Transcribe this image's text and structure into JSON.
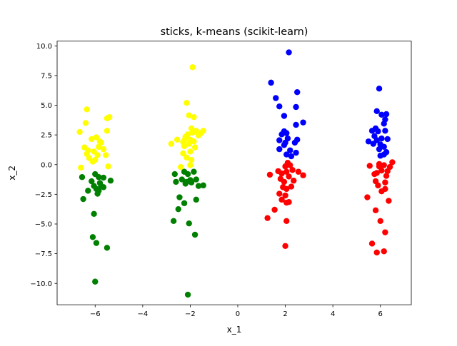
{
  "chart_data": {
    "type": "scatter",
    "title": "sticks, k-means (scikit-learn)",
    "xlabel": "x_1",
    "ylabel": "x_2",
    "xlim": [
      -7.6,
      7.3
    ],
    "ylim": [
      -11.8,
      10.4
    ],
    "xticks": [
      -6,
      -4,
      -2,
      0,
      2,
      4,
      6
    ],
    "xtick_labels": [
      "−6",
      "−4",
      "−2",
      "0",
      "2",
      "4",
      "6"
    ],
    "yticks": [
      -10.0,
      -7.5,
      -5.0,
      -2.5,
      0.0,
      2.5,
      5.0,
      7.5,
      10.0
    ],
    "ytick_labels": [
      "−10.0",
      "−7.5",
      "−5.0",
      "−2.5",
      "0.0",
      "2.5",
      "5.0",
      "7.5",
      "10.0"
    ],
    "grid": false,
    "legend": false,
    "series": [
      {
        "color": "#ffff00",
        "points": [
          [
            -6.65,
            2.75
          ],
          [
            -6.35,
            4.65
          ],
          [
            -6.4,
            3.5
          ],
          [
            -6.45,
            1.45
          ],
          [
            -6.3,
            1.2
          ],
          [
            -6.05,
            1.1
          ],
          [
            -6.15,
            2.15
          ],
          [
            -5.95,
            2.3
          ],
          [
            -5.75,
            1.85
          ],
          [
            -5.65,
            1.3
          ],
          [
            -5.55,
            0.8
          ],
          [
            -5.5,
            3.9
          ],
          [
            -5.4,
            4.0
          ],
          [
            -5.5,
            2.85
          ],
          [
            -6.25,
            0.55
          ],
          [
            -6.1,
            0.25
          ],
          [
            -5.9,
            0.8
          ],
          [
            -5.85,
            1.5
          ],
          [
            -6.6,
            -0.25
          ],
          [
            -5.45,
            -0.15
          ],
          [
            -5.8,
            1.95
          ],
          [
            -6.0,
            0.4
          ],
          [
            -6.35,
            0.9
          ],
          [
            -2.8,
            1.75
          ],
          [
            -2.55,
            2.1
          ],
          [
            -2.3,
            1.9
          ],
          [
            -2.2,
            2.35
          ],
          [
            -2.1,
            2.55
          ],
          [
            -2.0,
            2.1
          ],
          [
            -1.9,
            2.7
          ],
          [
            -1.75,
            2.85
          ],
          [
            -1.65,
            2.45
          ],
          [
            -1.45,
            2.85
          ],
          [
            -2.15,
            5.2
          ],
          [
            -2.05,
            4.15
          ],
          [
            -1.85,
            4.0
          ],
          [
            -1.95,
            3.05
          ],
          [
            -1.9,
            8.2
          ],
          [
            -2.25,
            1.55
          ],
          [
            -2.0,
            1.1
          ],
          [
            -1.8,
            1.45
          ],
          [
            -2.15,
            0.6
          ],
          [
            -1.95,
            0.4
          ],
          [
            -2.4,
            -0.2
          ],
          [
            -2.0,
            -0.05
          ],
          [
            -2.3,
            0.95
          ],
          [
            -1.85,
            1.95
          ],
          [
            -2.05,
            1.75
          ],
          [
            -2.25,
            2.05
          ],
          [
            -1.55,
            2.65
          ]
        ]
      },
      {
        "color": "#008000",
        "points": [
          [
            -6.55,
            -1.05
          ],
          [
            -6.3,
            -2.2
          ],
          [
            -6.5,
            -2.9
          ],
          [
            -6.15,
            -1.4
          ],
          [
            -6.05,
            -1.8
          ],
          [
            -6.0,
            -0.8
          ],
          [
            -5.95,
            -2.05
          ],
          [
            -5.9,
            -2.45
          ],
          [
            -5.85,
            -1.05
          ],
          [
            -5.8,
            -1.55
          ],
          [
            -5.75,
            -1.8
          ],
          [
            -5.35,
            -1.35
          ],
          [
            -5.5,
            -7.0
          ],
          [
            -5.95,
            -6.6
          ],
          [
            -6.1,
            -6.1
          ],
          [
            -6.05,
            -4.15
          ],
          [
            -6.0,
            -9.85
          ],
          [
            -5.65,
            -1.1
          ],
          [
            -5.85,
            -2.2
          ],
          [
            -5.65,
            -1.9
          ],
          [
            -2.65,
            -0.8
          ],
          [
            -2.6,
            -1.45
          ],
          [
            -2.25,
            -0.6
          ],
          [
            -2.1,
            -0.8
          ],
          [
            -2.0,
            -1.3
          ],
          [
            -1.85,
            -0.6
          ],
          [
            -1.75,
            -1.25
          ],
          [
            -1.65,
            -1.8
          ],
          [
            -1.45,
            -1.75
          ],
          [
            -2.35,
            -1.25
          ],
          [
            -2.2,
            -1.6
          ],
          [
            -2.15,
            -1.45
          ],
          [
            -1.95,
            -1.5
          ],
          [
            -2.7,
            -4.75
          ],
          [
            -2.5,
            -3.75
          ],
          [
            -2.45,
            -2.75
          ],
          [
            -2.25,
            -3.25
          ],
          [
            -2.05,
            -4.95
          ],
          [
            -1.8,
            -5.9
          ],
          [
            -1.75,
            -2.95
          ],
          [
            -2.1,
            -10.95
          ]
        ]
      },
      {
        "color": "#0000ff",
        "points": [
          [
            2.15,
            9.45
          ],
          [
            1.4,
            6.9
          ],
          [
            1.6,
            5.6
          ],
          [
            1.75,
            4.9
          ],
          [
            1.95,
            4.1
          ],
          [
            2.5,
            6.1
          ],
          [
            2.45,
            4.85
          ],
          [
            2.45,
            3.35
          ],
          [
            2.75,
            3.55
          ],
          [
            1.75,
            2.05
          ],
          [
            1.85,
            2.55
          ],
          [
            1.95,
            2.8
          ],
          [
            2.05,
            2.65
          ],
          [
            2.1,
            2.2
          ],
          [
            1.95,
            1.65
          ],
          [
            1.75,
            1.3
          ],
          [
            2.05,
            0.85
          ],
          [
            2.2,
            1.2
          ],
          [
            2.45,
            1.0
          ],
          [
            2.5,
            2.1
          ],
          [
            2.4,
            1.85
          ],
          [
            2.25,
            0.7
          ],
          [
            2.0,
            1.85
          ],
          [
            5.95,
            6.4
          ],
          [
            5.85,
            4.5
          ],
          [
            6.05,
            4.2
          ],
          [
            6.25,
            4.25
          ],
          [
            6.2,
            3.8
          ],
          [
            6.15,
            3.45
          ],
          [
            5.8,
            3.05
          ],
          [
            5.9,
            2.8
          ],
          [
            5.75,
            2.4
          ],
          [
            6.2,
            2.85
          ],
          [
            5.5,
            1.95
          ],
          [
            5.7,
            1.75
          ],
          [
            5.85,
            2.05
          ],
          [
            6.05,
            2.2
          ],
          [
            6.3,
            2.15
          ],
          [
            6.15,
            1.5
          ],
          [
            5.95,
            1.3
          ],
          [
            6.25,
            1.05
          ],
          [
            6.0,
            0.75
          ],
          [
            6.15,
            0.85
          ],
          [
            5.65,
            2.85
          ],
          [
            6.0,
            1.7
          ]
        ]
      },
      {
        "color": "#ff0000",
        "points": [
          [
            1.35,
            -0.85
          ],
          [
            1.7,
            -0.55
          ],
          [
            1.8,
            -1.2
          ],
          [
            1.85,
            -0.75
          ],
          [
            2.0,
            -0.15
          ],
          [
            2.05,
            -0.6
          ],
          [
            2.15,
            -1.0
          ],
          [
            2.2,
            -0.05
          ],
          [
            2.3,
            -0.45
          ],
          [
            2.55,
            -0.6
          ],
          [
            2.75,
            -0.9
          ],
          [
            1.9,
            -1.9
          ],
          [
            2.05,
            -2.05
          ],
          [
            2.25,
            -1.85
          ],
          [
            1.75,
            -2.45
          ],
          [
            2.0,
            -2.6
          ],
          [
            1.85,
            -2.95
          ],
          [
            2.05,
            -3.2
          ],
          [
            2.15,
            -3.15
          ],
          [
            1.55,
            -3.8
          ],
          [
            1.25,
            -4.5
          ],
          [
            2.05,
            -4.75
          ],
          [
            2.0,
            -6.85
          ],
          [
            2.1,
            0.15
          ],
          [
            2.35,
            -1.35
          ],
          [
            1.95,
            -1.45
          ],
          [
            5.45,
            -2.75
          ],
          [
            5.55,
            -0.1
          ],
          [
            5.75,
            -0.8
          ],
          [
            5.8,
            -1.4
          ],
          [
            5.85,
            -0.7
          ],
          [
            5.95,
            -0.15
          ],
          [
            6.05,
            -0.5
          ],
          [
            6.15,
            -0.05
          ],
          [
            6.25,
            -0.95
          ],
          [
            6.3,
            -0.55
          ],
          [
            6.4,
            -0.2
          ],
          [
            6.5,
            0.2
          ],
          [
            5.9,
            -1.75
          ],
          [
            6.05,
            -2.25
          ],
          [
            6.2,
            -2.05
          ],
          [
            6.35,
            -3.05
          ],
          [
            5.8,
            -3.85
          ],
          [
            6.0,
            -4.75
          ],
          [
            6.2,
            -5.7
          ],
          [
            5.65,
            -6.65
          ],
          [
            5.85,
            -7.4
          ],
          [
            6.15,
            -7.3
          ],
          [
            6.2,
            -1.5
          ],
          [
            5.95,
            0.05
          ]
        ]
      }
    ]
  }
}
